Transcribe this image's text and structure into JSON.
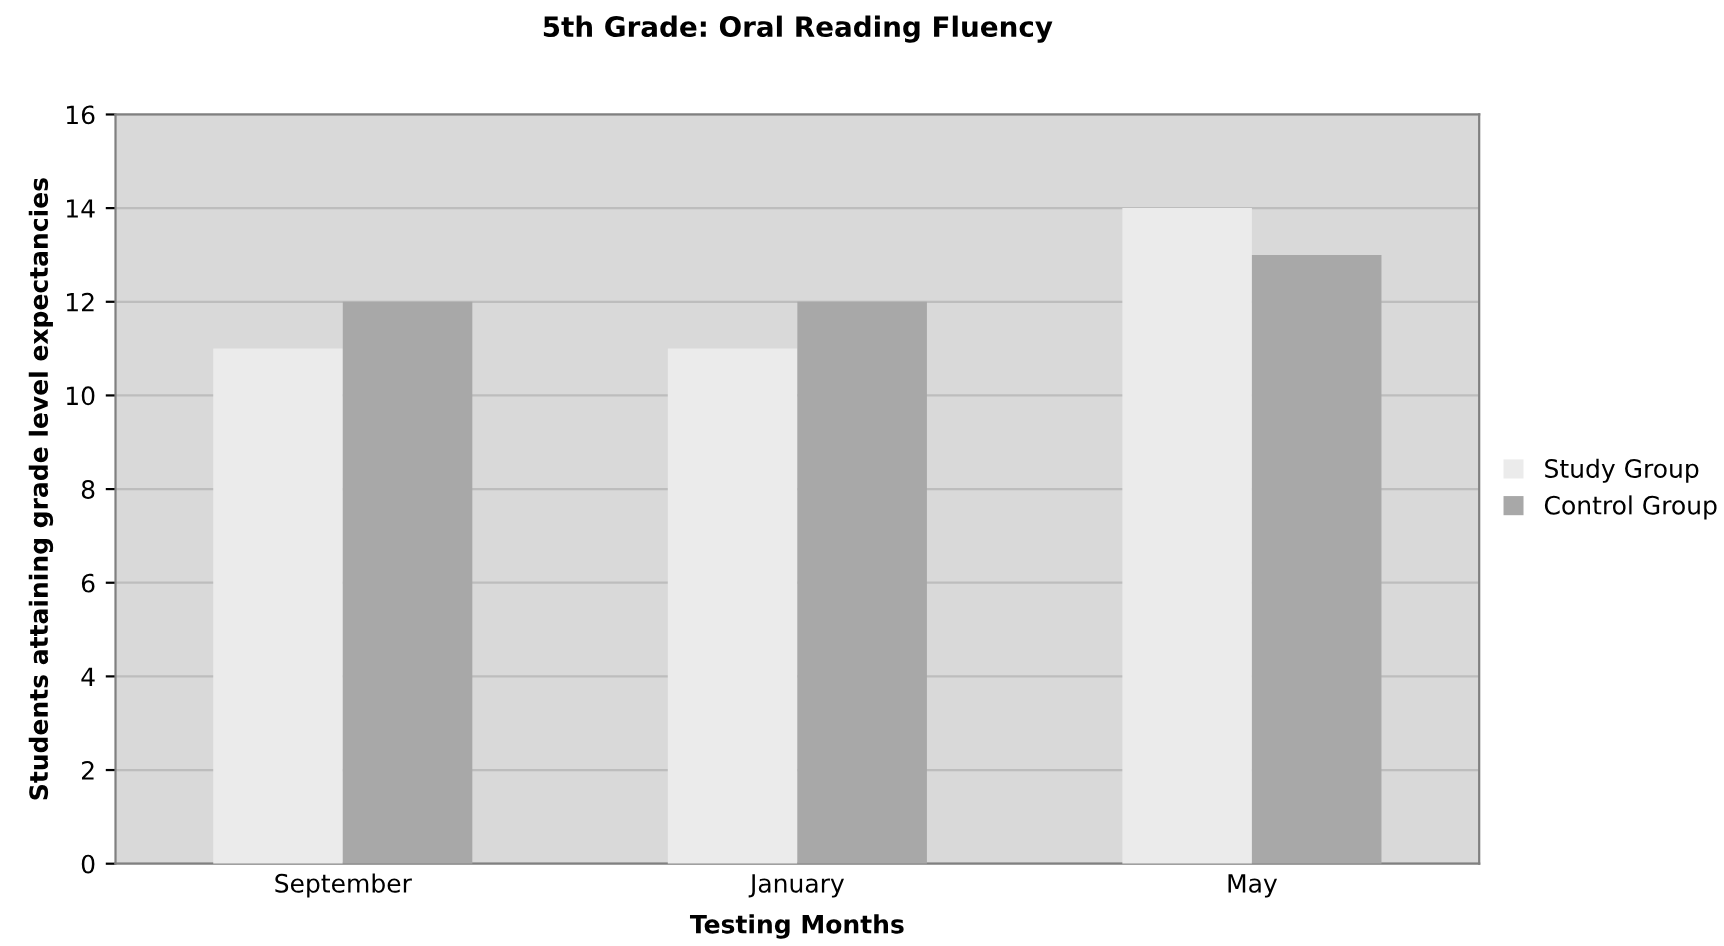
{
  "chart_data": {
    "type": "bar",
    "title": "5th Grade: Oral Reading Fluency",
    "xlabel": "Testing Months",
    "ylabel": "Students attaining grade level expectancies",
    "categories": [
      "September",
      "January",
      "May"
    ],
    "series": [
      {
        "name": "Study Group",
        "color": "#ebebeb",
        "values": [
          11,
          11,
          14
        ]
      },
      {
        "name": "Control Group",
        "color": "#a8a8a8",
        "values": [
          12,
          12,
          13
        ]
      }
    ],
    "ylim": [
      0,
      16
    ],
    "yticks": [
      0,
      2,
      4,
      6,
      8,
      10,
      12,
      14,
      16
    ],
    "grid": "y",
    "legend": "right"
  }
}
